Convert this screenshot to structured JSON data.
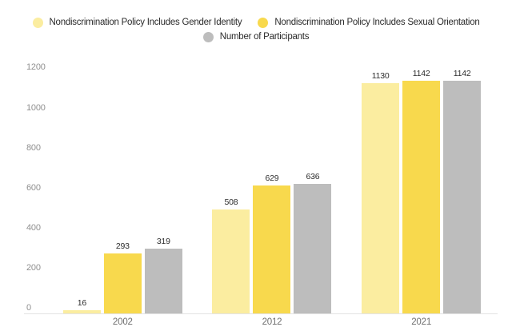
{
  "chart_data": {
    "type": "bar",
    "categories": [
      "2002",
      "2012",
      "2021"
    ],
    "series": [
      {
        "name": "Nondiscrimination Policy Includes Gender Identity",
        "color": "#FBEDA0",
        "values": [
          16,
          508,
          1130
        ]
      },
      {
        "name": "Nondiscrimination Policy Includes Sexual Orientation",
        "color": "#F8D94D",
        "values": [
          293,
          629,
          1142
        ]
      },
      {
        "name": "Number of Participants",
        "color": "#BDBDBD",
        "values": [
          319,
          636,
          1142
        ]
      }
    ],
    "yticks": [
      0,
      200,
      400,
      600,
      800,
      1000,
      1200
    ],
    "ylim": [
      0,
      1200
    ],
    "grid": false,
    "legend_position": "top",
    "value_labels_shown": true,
    "colors": {
      "value_label": "#2d2d2d",
      "axis_tick_label": "#8f8f8f",
      "category_label": "#6e6e6e",
      "baseline": "#e3e3e3",
      "background": "#ffffff"
    }
  }
}
